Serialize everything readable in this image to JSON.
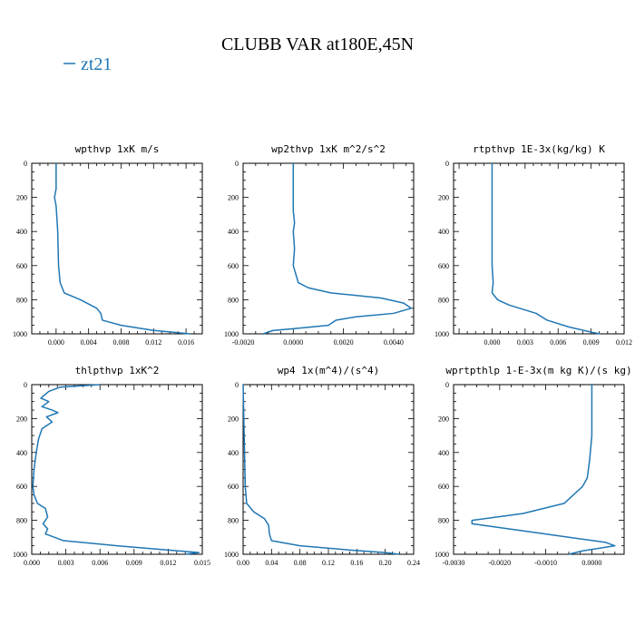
{
  "title": "CLUBB VAR at180E,45N",
  "legend": {
    "label": "zt21",
    "color": "#1f77b4"
  },
  "chart_data": [
    {
      "type": "line",
      "title": "wpthvp  1xK m/s",
      "xlim": [
        -0.003,
        0.018
      ],
      "ylim": [
        1000,
        0
      ],
      "x_ticks": [
        "0.000",
        "0.004",
        "0.008",
        "0.012",
        "0.016"
      ],
      "x_tick_values": [
        0,
        0.004,
        0.008,
        0.012,
        0.016
      ],
      "y_ticks": [
        "0",
        "200",
        "400",
        "600",
        "800",
        "1000"
      ],
      "series": [
        {
          "name": "zt21",
          "color": "#1f77b4",
          "x": [
            0.0,
            0.0,
            -0.0002,
            0.0,
            0.0002,
            0.0003,
            0.0005,
            0.001,
            0.003,
            0.005,
            0.0055,
            0.0057,
            0.008,
            0.012,
            0.0165
          ],
          "y": [
            0,
            150,
            200,
            250,
            400,
            600,
            700,
            760,
            800,
            850,
            880,
            920,
            950,
            980,
            1000
          ]
        }
      ]
    },
    {
      "type": "line",
      "title": "wp2thvp  1xK m^2/s^2",
      "xlim": [
        -0.002,
        0.0048
      ],
      "ylim": [
        1000,
        0
      ],
      "x_ticks": [
        "-0.0020",
        "0.0000",
        "0.0020",
        "0.0040"
      ],
      "x_tick_values": [
        -0.002,
        0.0,
        0.002,
        0.004
      ],
      "y_ticks": [
        "0",
        "200",
        "400",
        "600",
        "800",
        "1000"
      ],
      "series": [
        {
          "name": "zt21",
          "color": "#1f77b4",
          "x": [
            0.0,
            0.0,
            0.0,
            5e-05,
            0.0,
            5e-05,
            0.0,
            0.0002,
            0.0006,
            0.0015,
            0.0035,
            0.0044,
            0.0047,
            0.004,
            0.0025,
            0.0017,
            0.0014,
            0.0,
            -0.0008,
            -0.0012
          ],
          "y": [
            0,
            200,
            280,
            350,
            400,
            500,
            600,
            700,
            730,
            760,
            790,
            820,
            850,
            880,
            900,
            920,
            950,
            970,
            980,
            1000
          ]
        }
      ]
    },
    {
      "type": "line",
      "title": "rtpthvp  1E-3x(kg/kg) K",
      "xlim": [
        -0.0035,
        0.012
      ],
      "ylim": [
        1000,
        0
      ],
      "x_ticks": [
        "0.000",
        "0.003",
        "0.006",
        "0.009",
        "0.012"
      ],
      "x_tick_values": [
        0,
        0.003,
        0.006,
        0.009,
        0.012
      ],
      "y_ticks": [
        "0",
        "200",
        "400",
        "600",
        "800",
        "1000"
      ],
      "series": [
        {
          "name": "zt21",
          "color": "#1f77b4",
          "x": [
            0.0,
            0.0,
            0.0,
            0.0001,
            0.0,
            0.0005,
            0.0015,
            0.004,
            0.005,
            0.007,
            0.009,
            0.0098
          ],
          "y": [
            0,
            400,
            600,
            700,
            760,
            800,
            830,
            880,
            920,
            960,
            990,
            1000
          ]
        }
      ]
    },
    {
      "type": "line",
      "title": "thlpthvp  1xK^2",
      "xlim": [
        0.0,
        0.015
      ],
      "ylim": [
        1000,
        0
      ],
      "x_ticks": [
        "0.000",
        "0.003",
        "0.006",
        "0.009",
        "0.012",
        "0.015"
      ],
      "x_tick_values": [
        0,
        0.003,
        0.006,
        0.009,
        0.012,
        0.015
      ],
      "y_ticks": [
        "0",
        "200",
        "400",
        "600",
        "800",
        "1000"
      ],
      "series": [
        {
          "name": "zt21",
          "color": "#1f77b4",
          "x": [
            0.006,
            0.0025,
            0.0015,
            0.0008,
            0.0015,
            0.0009,
            0.0018,
            0.0023,
            0.0013,
            0.0018,
            0.0009,
            0.0006,
            0.0004,
            0.0002,
            0.0001,
            0.0002,
            0.0005,
            0.0012,
            0.0014,
            0.001,
            0.0014,
            0.0012,
            0.0028,
            0.0075,
            0.012,
            0.0147,
            0.0135
          ],
          "y": [
            0,
            15,
            40,
            80,
            100,
            130,
            150,
            165,
            190,
            220,
            260,
            320,
            400,
            500,
            600,
            650,
            700,
            730,
            780,
            820,
            850,
            880,
            920,
            950,
            975,
            990,
            1000
          ]
        }
      ]
    },
    {
      "type": "line",
      "title": "wp4  1x(m^4)/(s^4)",
      "xlim": [
        0.0,
        0.24
      ],
      "ylim": [
        1000,
        0
      ],
      "x_ticks": [
        "0.00",
        "0.04",
        "0.08",
        "0.12",
        "0.16",
        "0.20",
        "0.24"
      ],
      "x_tick_values": [
        0,
        0.04,
        0.08,
        0.12,
        0.16,
        0.2,
        0.24
      ],
      "y_ticks": [
        "0",
        "200",
        "400",
        "600",
        "800",
        "1000"
      ],
      "series": [
        {
          "name": "zt21",
          "color": "#1f77b4",
          "x": [
            0.0,
            0.001,
            0.002,
            0.003,
            0.005,
            0.015,
            0.03,
            0.036,
            0.037,
            0.04,
            0.08,
            0.15,
            0.2,
            0.22
          ],
          "y": [
            0,
            200,
            400,
            600,
            700,
            750,
            790,
            830,
            880,
            920,
            950,
            975,
            990,
            1000
          ]
        }
      ]
    },
    {
      "type": "line",
      "title": "wprtpthlp  1-E-3x(m kg K)/(s kg)",
      "xlim": [
        -0.003,
        0.0007
      ],
      "ylim": [
        1000,
        0
      ],
      "x_ticks": [
        "-0.0030",
        "-0.0020",
        "-0.0010",
        "0.0000"
      ],
      "x_tick_values": [
        -0.003,
        -0.002,
        -0.001,
        0.0
      ],
      "y_ticks": [
        "0",
        "200",
        "400",
        "600",
        "800",
        "1000"
      ],
      "series": [
        {
          "name": "zt21",
          "color": "#1f77b4",
          "x": [
            0.0,
            0.0,
            -5e-05,
            -0.0001,
            -0.0002,
            -0.0004,
            -0.0006,
            -0.0015,
            -0.0026,
            -0.0026,
            -0.0018,
            -0.0005,
            0.0003,
            0.0005,
            -0.0002,
            -0.0005
          ],
          "y": [
            0,
            300,
            450,
            550,
            600,
            650,
            700,
            760,
            800,
            820,
            850,
            900,
            930,
            950,
            980,
            1000
          ]
        }
      ]
    }
  ]
}
